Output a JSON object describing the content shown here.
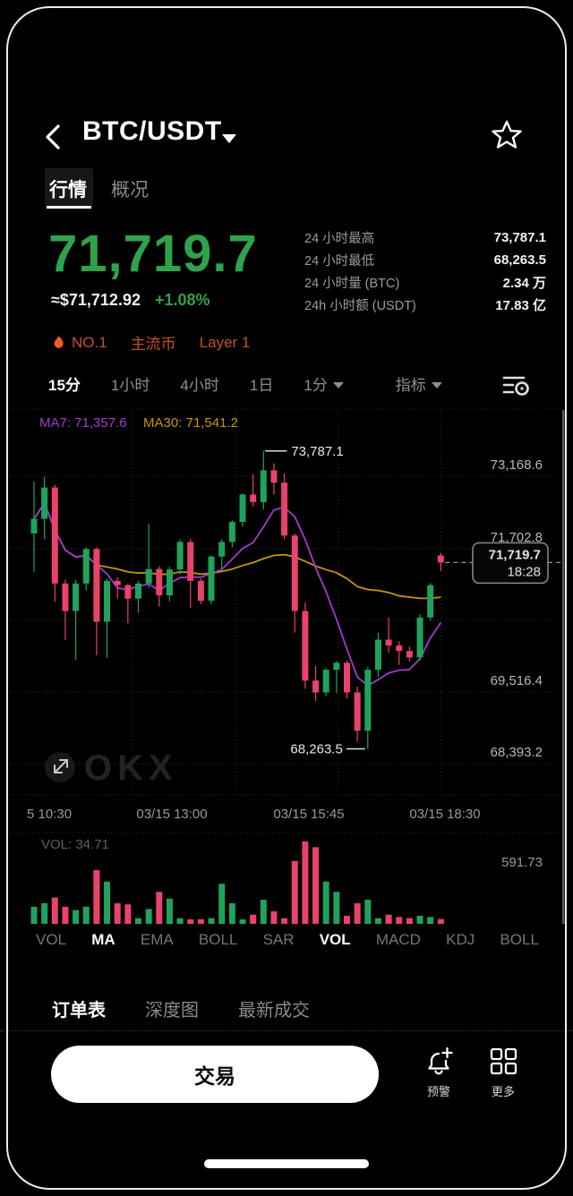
{
  "header": {
    "title": "BTC/USDT"
  },
  "tabs": {
    "quotes": "行情",
    "overview": "概况"
  },
  "price": {
    "last": "71,719.7",
    "fiat": "≈$71,712.92",
    "change": "+1.08%"
  },
  "badges": {
    "rank": "NO.1",
    "mainstream": "主流币",
    "layer": "Layer 1"
  },
  "stats": [
    {
      "label": "24 小时最高",
      "value": "73,787.1"
    },
    {
      "label": "24 小时最低",
      "value": "68,263.5"
    },
    {
      "label": "24 小时量 (BTC)",
      "value": "2.34 万"
    },
    {
      "label": "24h 小时额 (USDT)",
      "value": "17.83 亿"
    }
  ],
  "timeframes": {
    "t0": "15分",
    "t1": "1小时",
    "t2": "4小时",
    "t3": "1日",
    "t4": "1分",
    "t5": "指标"
  },
  "chart": {
    "ma7_label": "MA7: 71,357.6",
    "ma30_label": "MA30: 71,541.2",
    "high_annotation": "73,787.1",
    "low_annotation": "68,263.5",
    "price_tag": {
      "price": "71,719.7",
      "time": "18:28"
    },
    "y_axis_labels": [
      "73,168.6",
      "71,702.8",
      "69,516.4",
      "68,393.2"
    ],
    "x_axis_labels": [
      "5 10:30",
      "03/15 13:00",
      "03/15 15:45",
      "03/15 18:30"
    ],
    "watermark": "OKX"
  },
  "volume_pane": {
    "label": "VOL: 34.71",
    "max_label": "591.73"
  },
  "indicators": {
    "items": [
      "VOL",
      "MA",
      "EMA",
      "BOLL",
      "SAR",
      "VOL",
      "MACD",
      "KDJ",
      "BOLL"
    ],
    "active": [
      1,
      5
    ]
  },
  "bottom_tabs": {
    "order_book": "订单表",
    "depth": "深度图",
    "latest_trades": "最新成交"
  },
  "actions": {
    "trade": "交易",
    "alert": "预警",
    "more": "更多"
  },
  "colors": {
    "up": "#1fa35c",
    "down": "#e8436b",
    "accent": "#2fa24b",
    "badge": "#c0522a",
    "ma7": "#a23ace",
    "ma30": "#c9940a"
  },
  "chart_data": {
    "type": "candlestick",
    "symbol": "BTC/USDT",
    "interval": "15分",
    "high_24h": 73787.1,
    "low_24h": 68263.5,
    "last": 71719.7,
    "last_time": "18:28",
    "volume_max": 591.73,
    "volume_last": 34.71,
    "candles": [
      [
        72260,
        73230,
        71550,
        72530,
        123
      ],
      [
        72530,
        73310,
        72150,
        73110,
        148
      ],
      [
        73110,
        73160,
        70990,
        71330,
        189
      ],
      [
        71330,
        71400,
        70280,
        70820,
        123
      ],
      [
        70820,
        71400,
        69910,
        71330,
        99
      ],
      [
        71330,
        72000,
        71200,
        71970,
        123
      ],
      [
        71970,
        72000,
        70000,
        70620,
        386
      ],
      [
        70620,
        71420,
        69950,
        71380,
        304
      ],
      [
        71380,
        71450,
        71050,
        71300,
        148
      ],
      [
        71300,
        71330,
        70590,
        71050,
        140
      ],
      [
        71050,
        71380,
        70790,
        71330,
        41
      ],
      [
        71330,
        72440,
        71250,
        71600,
        107
      ],
      [
        71600,
        71650,
        70900,
        71110,
        230
      ],
      [
        71110,
        71640,
        71000,
        71590,
        181
      ],
      [
        71590,
        72150,
        71500,
        72100,
        41
      ],
      [
        72100,
        72160,
        70880,
        71380,
        33
      ],
      [
        71380,
        71420,
        70950,
        71010,
        33
      ],
      [
        71010,
        71850,
        70940,
        71830,
        41
      ],
      [
        71830,
        72150,
        71600,
        72100,
        288
      ],
      [
        72100,
        72500,
        72000,
        72470,
        148
      ],
      [
        72470,
        73000,
        72380,
        72980,
        33
      ],
      [
        72980,
        73360,
        72760,
        72840,
        66
      ],
      [
        72840,
        73787.1,
        72700,
        73430,
        173
      ],
      [
        73430,
        73560,
        72980,
        73200,
        90
      ],
      [
        73200,
        73370,
        72150,
        72220,
        41
      ],
      [
        72220,
        72260,
        70420,
        70820,
        452
      ],
      [
        70820,
        70980,
        69380,
        69530,
        591.73
      ],
      [
        69530,
        69800,
        69150,
        69310,
        551
      ],
      [
        69310,
        69760,
        69240,
        69730,
        304
      ],
      [
        69730,
        69890,
        69300,
        69860,
        230
      ],
      [
        69860,
        69900,
        69200,
        69310,
        58
      ],
      [
        69310,
        69420,
        68400,
        68600,
        148
      ],
      [
        68600,
        69780,
        68263.5,
        69730,
        173
      ],
      [
        69730,
        70420,
        69600,
        70290,
        41
      ],
      [
        70290,
        70700,
        70050,
        70180,
        66
      ],
      [
        70180,
        70260,
        69820,
        70080,
        49
      ],
      [
        70080,
        70160,
        69890,
        69960,
        41
      ],
      [
        69960,
        70760,
        69900,
        70700,
        58
      ],
      [
        70700,
        71340,
        70640,
        71300,
        49
      ],
      [
        71850,
        71900,
        71560,
        71719.7,
        34.71
      ]
    ]
  }
}
